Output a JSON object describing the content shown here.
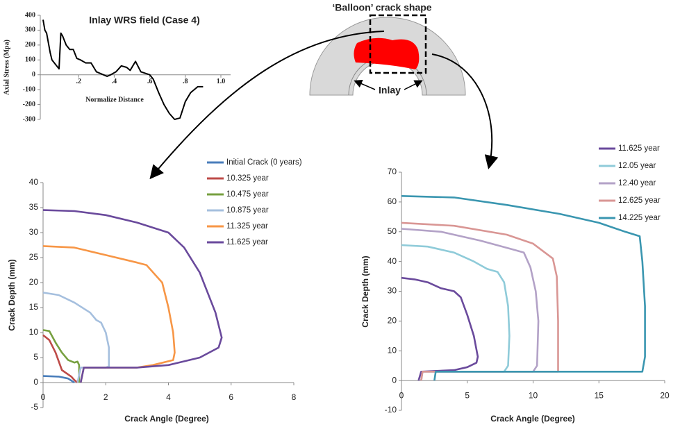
{
  "diagram": {
    "title": "‘Balloon’ crack shape",
    "label": "Inlay"
  },
  "chart_data": [
    {
      "type": "line",
      "title": "Inlay WRS field (Case 4)",
      "x_label": "Normalize Distance",
      "y_label": "Axial Stress (Mpa)",
      "xlim": [
        0,
        1
      ],
      "ylim": [
        -300,
        400
      ],
      "xticks": [
        {
          "value": 0.2,
          "label": ".2"
        },
        {
          "value": 0.4,
          "label": ".4"
        },
        {
          "value": 0.6,
          "label": ".6"
        },
        {
          "value": 0.8,
          "label": ".8"
        },
        {
          "value": 1,
          "label": "1.0"
        }
      ],
      "yticks": [
        -300,
        -200,
        -100,
        0,
        100,
        200,
        300,
        400
      ],
      "series": [
        {
          "color": "#000000",
          "x": [
            0,
            0.01,
            0.02,
            0.04,
            0.05,
            0.07,
            0.09,
            0.1,
            0.11,
            0.13,
            0.15,
            0.17,
            0.19,
            0.21,
            0.24,
            0.27,
            0.3,
            0.36,
            0.38,
            0.41,
            0.44,
            0.47,
            0.49,
            0.52,
            0.55,
            0.6,
            0.62,
            0.65,
            0.68,
            0.71,
            0.74,
            0.77,
            0.8,
            0.83,
            0.87,
            0.9
          ],
          "values": [
            370,
            300,
            280,
            150,
            100,
            70,
            40,
            280,
            260,
            200,
            170,
            170,
            110,
            100,
            80,
            80,
            20,
            -10,
            0,
            20,
            60,
            50,
            30,
            90,
            20,
            0,
            -30,
            -120,
            -200,
            -260,
            -300,
            -290,
            -180,
            -120,
            -80,
            -80
          ]
        }
      ]
    },
    {
      "type": "line",
      "x_label": "Crack Angle (Degree)",
      "y_label": "Crack Depth (mm)",
      "xlim": [
        0,
        8
      ],
      "ylim": [
        -5,
        40
      ],
      "xticks": [
        0,
        2,
        4,
        6,
        8
      ],
      "yticks": [
        -5,
        0,
        5,
        10,
        15,
        20,
        25,
        30,
        35,
        40
      ],
      "series": [
        {
          "name": "Initial Crack (0 years)",
          "color": "#4a7ebb",
          "x": [
            0,
            0.5,
            0.8,
            1
          ],
          "values": [
            1.3,
            1.2,
            0.8,
            0
          ]
        },
        {
          "name": "10.325 year",
          "color": "#be4b48",
          "x": [
            0,
            0.2,
            0.4,
            0.6,
            0.9,
            1.0,
            1.1
          ],
          "values": [
            9.5,
            8.5,
            6,
            2.5,
            1.2,
            0.5,
            0
          ]
        },
        {
          "name": "10.475 year",
          "color": "#77a040",
          "x": [
            0,
            0.2,
            0.4,
            0.6,
            0.8,
            1.0,
            1.1,
            1.15,
            1.15
          ],
          "values": [
            10.5,
            10.3,
            8,
            6,
            4.5,
            4,
            4.2,
            3.5,
            0
          ]
        },
        {
          "name": "10.875 year",
          "color": "#a5bfde",
          "x": [
            0,
            0.5,
            1.0,
            1.5,
            1.7,
            1.85,
            2.0,
            2.1,
            2.1,
            2.0,
            1.2,
            1.1
          ],
          "values": [
            18,
            17.5,
            16,
            14,
            12.5,
            12,
            10,
            7,
            3.2,
            3,
            3,
            0
          ]
        },
        {
          "name": "11.325 year",
          "color": "#f79646",
          "x": [
            0,
            1,
            2,
            3,
            3.3,
            3.8,
            4.0,
            4.15,
            4.2,
            4.15,
            3.5,
            3,
            1.3,
            1.2
          ],
          "values": [
            27.3,
            27,
            25.5,
            24,
            23.5,
            20,
            15,
            10,
            6,
            4.5,
            3.5,
            3,
            3,
            0
          ]
        },
        {
          "name": "11.625 year",
          "color": "#6a4a9c",
          "x": [
            0,
            1,
            2,
            3,
            4,
            4.5,
            5,
            5.5,
            5.7,
            5.6,
            5,
            4,
            3,
            1.3,
            1.2
          ],
          "values": [
            34.5,
            34.3,
            33.5,
            32,
            30,
            27,
            22,
            14,
            9,
            7,
            5,
            3.5,
            3,
            3,
            0
          ]
        }
      ]
    },
    {
      "type": "line",
      "x_label": "Crack Angle (Degree)",
      "y_label": "Crack Depth (mm)",
      "xlim": [
        0,
        20
      ],
      "ylim": [
        -10,
        70
      ],
      "xticks": [
        0,
        5,
        10,
        15,
        20
      ],
      "yticks": [
        -10,
        0,
        10,
        20,
        30,
        40,
        50,
        60,
        70
      ],
      "series": [
        {
          "name": "11.625 year",
          "color": "#6a4a9c",
          "x": [
            0,
            1,
            2,
            3,
            4,
            4.5,
            5,
            5.5,
            5.8,
            5.7,
            5,
            4,
            1.5,
            1.3
          ],
          "values": [
            34.5,
            34,
            33,
            31,
            30,
            28,
            22,
            15,
            8,
            6,
            4.5,
            3.5,
            3,
            0
          ]
        },
        {
          "name": "12.05 year",
          "color": "#8fcbd9",
          "x": [
            0,
            2,
            4,
            5.5,
            6.5,
            7.3,
            7.8,
            8.1,
            8.2,
            8.1,
            7.8,
            1.6,
            1.5
          ],
          "values": [
            45.5,
            45,
            43,
            40,
            37.5,
            36.5,
            33,
            25,
            15,
            5,
            3,
            3,
            0
          ]
        },
        {
          "name": "12.40 year",
          "color": "#b3a2c7",
          "x": [
            0,
            3,
            6,
            8.5,
            9.3,
            9.8,
            10.2,
            10.4,
            10.3,
            10,
            1.6,
            1.5
          ],
          "values": [
            51,
            50,
            47,
            44,
            43,
            38,
            30,
            20,
            5,
            3,
            3,
            0
          ]
        },
        {
          "name": "12.625 year",
          "color": "#d99694",
          "x": [
            0,
            4,
            8,
            10,
            11.5,
            11.8,
            11.9,
            11.9,
            1.6,
            1.5
          ],
          "values": [
            53,
            52,
            49,
            46,
            41,
            35,
            20,
            3,
            3,
            0
          ]
        },
        {
          "name": "14.225 year",
          "color": "#3a96b0",
          "x": [
            0,
            4,
            8,
            12,
            15,
            17,
            18.1,
            18.3,
            18.5,
            18.5,
            18.3,
            2.6,
            2.5
          ],
          "values": [
            62,
            61.5,
            59,
            56,
            53,
            50,
            48.5,
            40,
            25,
            8,
            3,
            3,
            0
          ]
        }
      ]
    }
  ]
}
